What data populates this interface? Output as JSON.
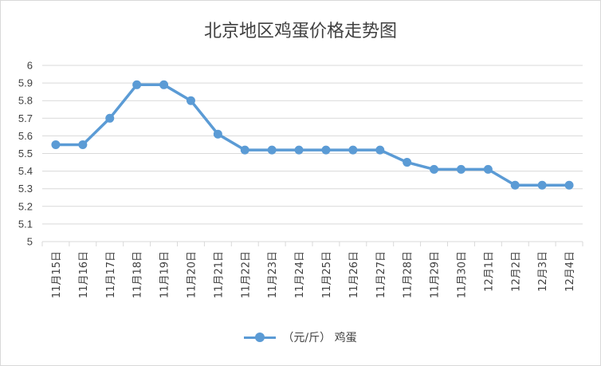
{
  "chart_data": {
    "type": "line",
    "title": "北京地区鸡蛋价格走势图",
    "categories": [
      "11月15日",
      "11月16日",
      "11月17日",
      "11月18日",
      "11月19日",
      "11月20日",
      "11月21日",
      "11月22日",
      "11月23日",
      "11月24日",
      "11月25日",
      "11月26日",
      "11月27日",
      "11月28日",
      "11月29日",
      "11月30日",
      "12月1日",
      "12月2日",
      "12月3日",
      "12月4日"
    ],
    "series": [
      {
        "name": "（元/斤） 鸡蛋",
        "values": [
          5.55,
          5.55,
          5.7,
          5.89,
          5.89,
          5.8,
          5.61,
          5.52,
          5.52,
          5.52,
          5.52,
          5.52,
          5.52,
          5.45,
          5.41,
          5.41,
          5.41,
          5.32,
          5.32,
          5.32
        ]
      }
    ],
    "yticks": [
      "5",
      "5.1",
      "5.2",
      "5.3",
      "5.4",
      "5.5",
      "5.6",
      "5.7",
      "5.8",
      "5.9",
      "6"
    ],
    "ylim": [
      5,
      6
    ],
    "grid": true,
    "legend_position": "bottom",
    "colors": {
      "series": "#5b9bd5",
      "grid": "#d9d9d9",
      "text": "#404040"
    }
  }
}
